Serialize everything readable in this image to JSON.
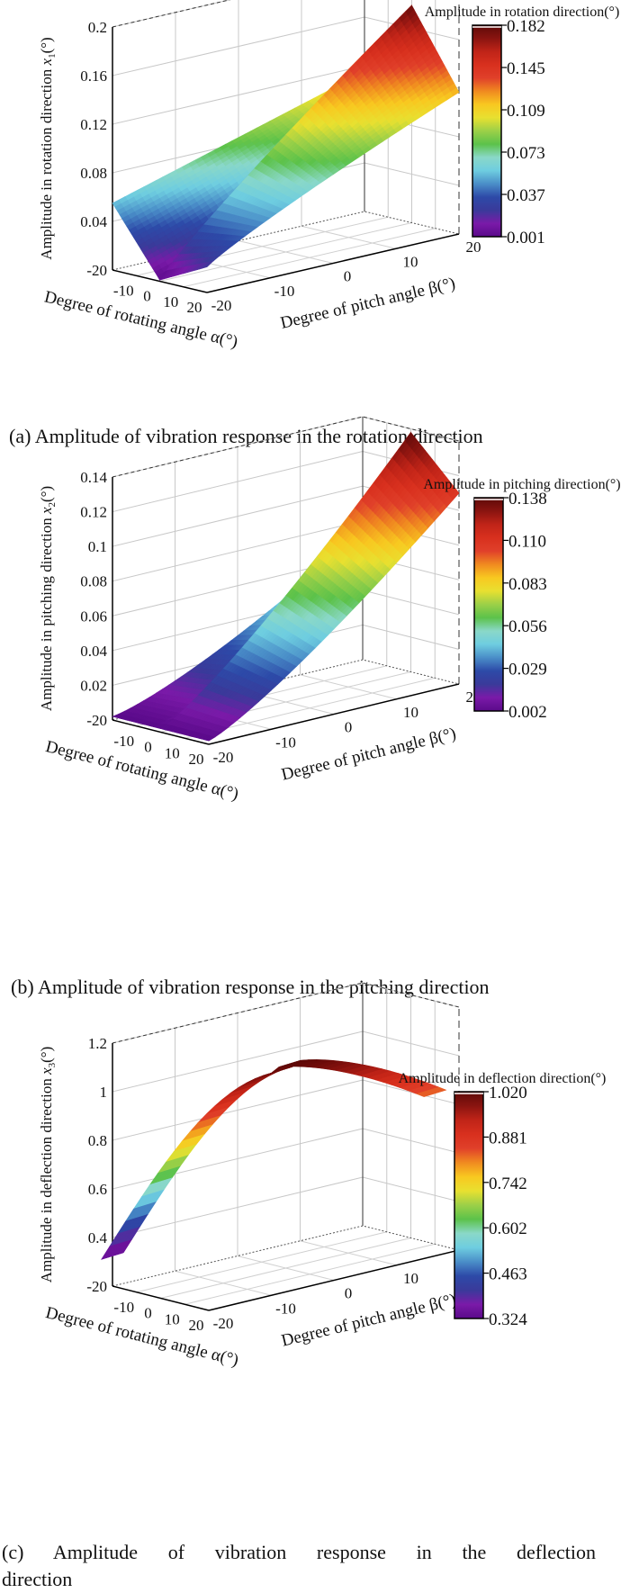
{
  "figure": {
    "captions": [
      "(a) Amplitude of vibration response in the rotation direction",
      "(b) Amplitude of vibration response in the pitching direction",
      "(c) Amplitude of vibration response in the deflection",
      "direction"
    ]
  },
  "colormap": [
    "#5a0a8a",
    "#7a1aa8",
    "#3a3a9a",
    "#2d4aa8",
    "#4a8ec8",
    "#6ecde0",
    "#8ad8c8",
    "#5cc24a",
    "#9cd048",
    "#e8e030",
    "#f8c820",
    "#f08a20",
    "#e0402a",
    "#d8301e",
    "#c02418",
    "#8a1410",
    "#5e0a08"
  ],
  "chart_data": [
    {
      "type": "surface3d",
      "id": "a",
      "title": "Amplitude in rotation direction(°)",
      "xlabel": "Degree of rotating angle α(°)",
      "ylabel": "Degree of pitch angle β(°)",
      "zlabel": "Amplitude in rotation direction x1(°)",
      "zlabel_main": "Amplitude in rotation direction ",
      "zlabel_var": "x",
      "zlabel_sub": "1",
      "zlabel_unit": "(°)",
      "x_ticks": [
        "-20",
        "-10",
        "0",
        "10",
        "20"
      ],
      "y_ticks": [
        "-20",
        "-10",
        "0",
        "10",
        "20"
      ],
      "z_ticks": [
        "0.04",
        "0.08",
        "0.12",
        "0.16",
        "0.2"
      ],
      "zlim": [
        0,
        0.2
      ],
      "xlim": [
        -20,
        20
      ],
      "ylim": [
        -20,
        20
      ],
      "colorbar_ticks": [
        "0.182",
        "0.145",
        "0.109",
        "0.073",
        "0.037",
        "0.001"
      ],
      "colorbar_range": [
        0.001,
        0.182
      ],
      "description": "Two sheets meeting along a V-shaped fold at α≈0; amplitude increases with |β| and is near-zero at α≈0,β≈-20",
      "surface_samples": [
        {
          "alpha": -20,
          "beta": -20,
          "value": 0.06
        },
        {
          "alpha": -20,
          "beta": 20,
          "value": 0.11
        },
        {
          "alpha": 0,
          "beta": -20,
          "value": 0.001
        },
        {
          "alpha": 0,
          "beta": 20,
          "value": 0.182
        },
        {
          "alpha": 20,
          "beta": -20,
          "value": 0.02
        },
        {
          "alpha": 20,
          "beta": 20,
          "value": 0.12
        }
      ]
    },
    {
      "type": "surface3d",
      "id": "b",
      "title": "Amplitude in pitching direction(°)",
      "xlabel": "Degree of rotating angle α(°)",
      "ylabel": "Degree of pitch angle β(°)",
      "zlabel": "Amplitude in pitching direction x2(°)",
      "zlabel_main": "Amplitude in pitching direction ",
      "zlabel_var": "x",
      "zlabel_sub": "2",
      "zlabel_unit": "(°)",
      "x_ticks": [
        "-20",
        "-10",
        "0",
        "10",
        "20"
      ],
      "y_ticks": [
        "-20",
        "-10",
        "0",
        "10",
        "20"
      ],
      "z_ticks": [
        "0.02",
        "0.04",
        "0.06",
        "0.08",
        "0.1",
        "0.12",
        "0.14"
      ],
      "zlim": [
        0,
        0.14
      ],
      "xlim": [
        -20,
        20
      ],
      "ylim": [
        -20,
        20
      ],
      "colorbar_ticks": [
        "0.138",
        "0.110",
        "0.083",
        "0.056",
        "0.029",
        "0.002"
      ],
      "colorbar_range": [
        0.002,
        0.138
      ],
      "description": "Two sheets: front sheet rises to ~0.09 at β=20 on the α<0 side; back sheet rises to ~0.138 at β=20 on the α>0 side; near-zero at β=-20",
      "surface_samples": [
        {
          "alpha": -20,
          "beta": -20,
          "value": 0.002
        },
        {
          "alpha": -20,
          "beta": 20,
          "value": 0.075
        },
        {
          "alpha": 0,
          "beta": 20,
          "value": 0.138
        },
        {
          "alpha": 20,
          "beta": -20,
          "value": 0.002
        },
        {
          "alpha": 20,
          "beta": 20,
          "value": 0.11
        }
      ]
    },
    {
      "type": "surface3d",
      "id": "c",
      "title": "Amplitude in deflection direction(°)",
      "xlabel": "Degree of rotating angle α(°)",
      "ylabel": "Degree of pitch angle β(°)",
      "zlabel": "Amplitude in deflection direction x3(°)",
      "zlabel_main": "Amplitude in deflection direction  ",
      "zlabel_var": "x",
      "zlabel_sub": "3",
      "zlabel_unit": "(°)",
      "x_ticks": [
        "-20",
        "-10",
        "0",
        "10",
        "20"
      ],
      "y_ticks": [
        "-20",
        "-10",
        "0",
        "10",
        "20"
      ],
      "z_ticks": [
        "0.4",
        "0.6",
        "0.8",
        "1",
        "1.2"
      ],
      "zlim": [
        0.2,
        1.2
      ],
      "xlim": [
        -20,
        20
      ],
      "ylim": [
        -20,
        20
      ],
      "colorbar_ticks": [
        "1.020",
        "0.881",
        "0.742",
        "0.602",
        "0.463",
        "0.324"
      ],
      "colorbar_range": [
        0.324,
        1.02
      ],
      "description": "Narrow arched ribbon along the diagonal; rises from ~0.32 at α=-20 to a peak ~1.02 near the middle, then decreases to ~0.85",
      "surface_samples": [
        {
          "alpha": -20,
          "beta": -20,
          "value": 0.324
        },
        {
          "alpha": -10,
          "beta": -10,
          "value": 0.75
        },
        {
          "alpha": 0,
          "beta": 0,
          "value": 0.95
        },
        {
          "alpha": 5,
          "beta": 5,
          "value": 1.02
        },
        {
          "alpha": 20,
          "beta": 20,
          "value": 0.85
        }
      ]
    }
  ]
}
